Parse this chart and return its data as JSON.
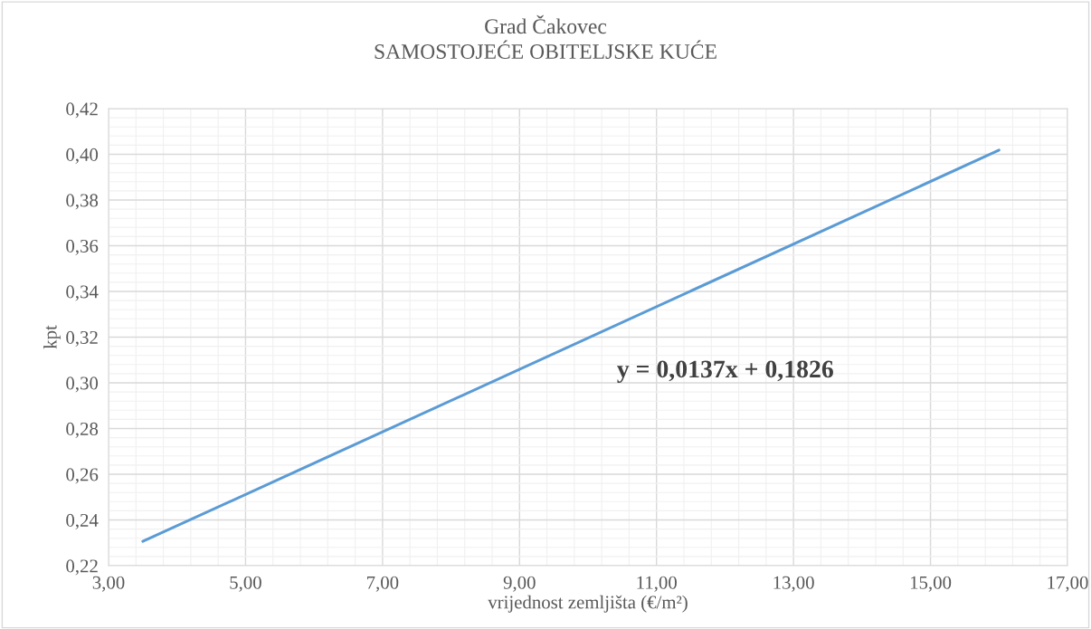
{
  "chart_data": {
    "type": "line",
    "title": "Grad Čakovec",
    "subtitle": "SAMOSTOJEĆE OBITELJSKE KUĆE",
    "xlabel": "vrijednost zemljišta (€/m²)",
    "ylabel": "kpt",
    "series": [
      {
        "x": [
          3.5,
          16
        ],
        "values": [
          0.2306,
          0.4018
        ],
        "color": "#5b9bd5"
      }
    ],
    "annotations": [
      "y = 0,0137x + 0,1826"
    ],
    "xlim": [
      3,
      17
    ],
    "xticks": [
      {
        "value": 3,
        "label": "3,00"
      },
      {
        "value": 5,
        "label": "5,00"
      },
      {
        "value": 7,
        "label": "7,00"
      },
      {
        "value": 9,
        "label": "9,00"
      },
      {
        "value": 11,
        "label": "11,00"
      },
      {
        "value": 13,
        "label": "13,00"
      },
      {
        "value": 15,
        "label": "15,00"
      },
      {
        "value": 17,
        "label": "17,00"
      }
    ],
    "ylim": [
      0.22,
      0.42
    ],
    "yticks": [
      {
        "value": 0.22,
        "label": "0,22"
      },
      {
        "value": 0.24,
        "label": "0,24"
      },
      {
        "value": 0.26,
        "label": "0,26"
      },
      {
        "value": 0.28,
        "label": "0,28"
      },
      {
        "value": 0.3,
        "label": "0,30"
      },
      {
        "value": 0.32,
        "label": "0,32"
      },
      {
        "value": 0.34,
        "label": "0,34"
      },
      {
        "value": 0.36,
        "label": "0,36"
      },
      {
        "value": 0.38,
        "label": "0,38"
      },
      {
        "value": 0.4,
        "label": "0,40"
      },
      {
        "value": 0.42,
        "label": "0,42"
      }
    ],
    "grid": true,
    "legend": false,
    "marker": "none",
    "line_style": "solid"
  }
}
